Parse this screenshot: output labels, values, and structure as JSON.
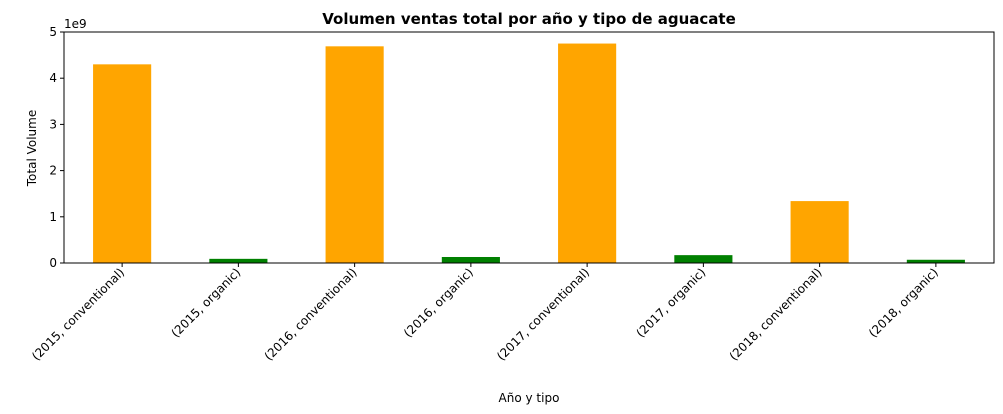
{
  "chart_data": {
    "type": "bar",
    "title": "Volumen ventas total por año y tipo de aguacate",
    "xlabel": "Año y tipo",
    "ylabel": "Total Volume",
    "y_offset_label": "1e9",
    "y_scale": 1000000000,
    "ylim": [
      0,
      5
    ],
    "yticks": [
      0,
      1,
      2,
      3,
      4,
      5
    ],
    "grid": false,
    "categories": [
      "(2015, conventional)",
      "(2015, organic)",
      "(2016, conventional)",
      "(2016, organic)",
      "(2017, conventional)",
      "(2017, organic)",
      "(2018, conventional)",
      "(2018, organic)"
    ],
    "values": [
      4.3,
      0.09,
      4.69,
      0.13,
      4.75,
      0.17,
      1.34,
      0.07
    ],
    "colors": [
      "#FFA500",
      "#008000",
      "#FFA500",
      "#008000",
      "#FFA500",
      "#008000",
      "#FFA500",
      "#008000"
    ]
  }
}
